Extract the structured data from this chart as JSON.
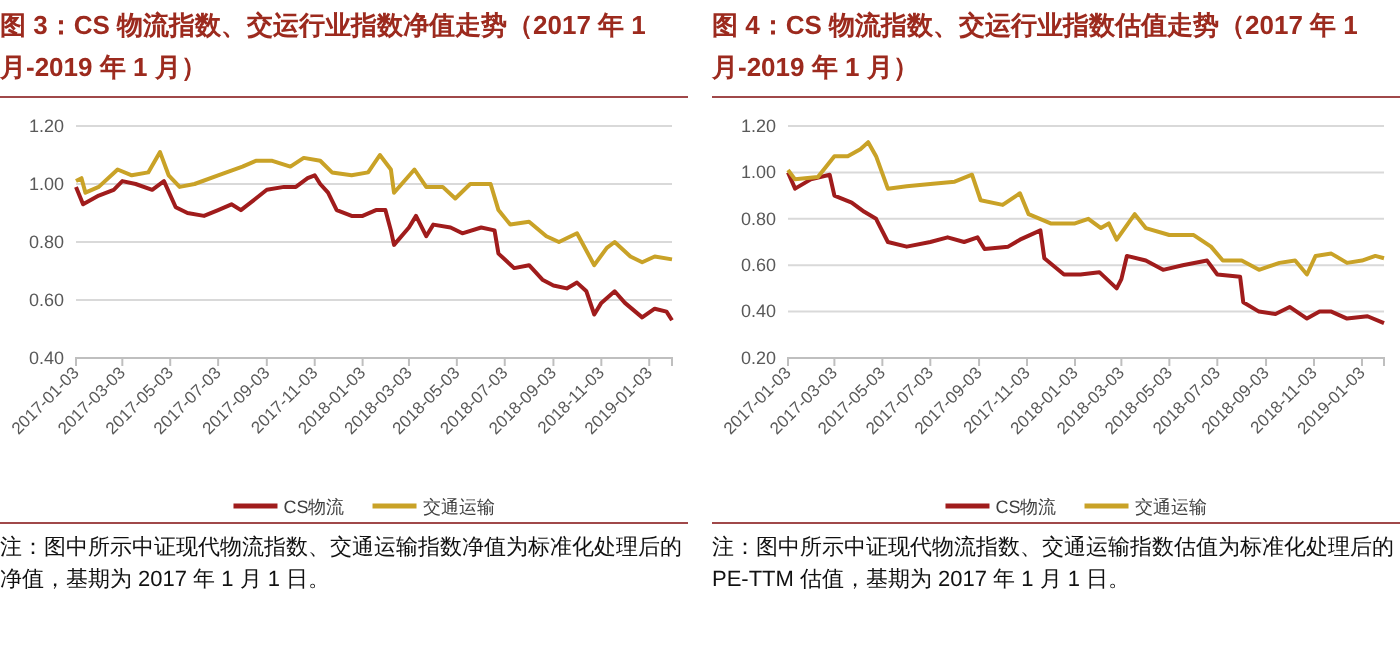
{
  "chart_data": [
    {
      "type": "line",
      "title": "图 3：CS 物流指数、交运行业指数净值走势（2017 年 1 月-2019 年 1 月）",
      "annotations": [
        "注：图中所示中证现代物流指数、交通运输指数净值为标准化处理后的净值，基期为 2017 年 1 月 1 日。"
      ],
      "xlim": [
        "2017-01-03",
        "2019-02-01"
      ],
      "xticks": [
        "2017-01-03",
        "2017-03-03",
        "2017-05-03",
        "2017-07-03",
        "2017-09-03",
        "2017-11-03",
        "2018-01-03",
        "2018-03-03",
        "2018-05-03",
        "2018-07-03",
        "2018-09-03",
        "2018-11-03",
        "2019-01-03"
      ],
      "ylim": [
        0.4,
        1.2
      ],
      "yticks": [
        {
          "value": 0.4,
          "label": "0.40"
        },
        {
          "value": 0.6,
          "label": "0.60"
        },
        {
          "value": 0.8,
          "label": "0.80"
        },
        {
          "value": 1.0,
          "label": "1.00"
        },
        {
          "value": 1.2,
          "label": "1.20"
        }
      ],
      "grid": "y",
      "legend": "bottom",
      "series": [
        {
          "name": "CS物流",
          "color": "#a01c1c",
          "x": [
            "2017-01-03",
            "2017-01-12",
            "2017-02-01",
            "2017-02-20",
            "2017-03-03",
            "2017-03-20",
            "2017-04-10",
            "2017-04-25",
            "2017-05-10",
            "2017-05-25",
            "2017-06-15",
            "2017-07-03",
            "2017-07-20",
            "2017-08-01",
            "2017-08-20",
            "2017-09-03",
            "2017-09-25",
            "2017-10-10",
            "2017-10-25",
            "2017-11-03",
            "2017-11-10",
            "2017-11-20",
            "2017-12-01",
            "2017-12-20",
            "2018-01-03",
            "2018-01-20",
            "2018-02-01",
            "2018-02-08",
            "2018-02-12",
            "2018-03-03",
            "2018-03-12",
            "2018-03-25",
            "2018-04-03",
            "2018-04-25",
            "2018-05-10",
            "2018-06-03",
            "2018-06-20",
            "2018-06-25",
            "2018-07-15",
            "2018-08-03",
            "2018-08-20",
            "2018-09-03",
            "2018-09-20",
            "2018-10-03",
            "2018-10-15",
            "2018-10-25",
            "2018-11-03",
            "2018-11-20",
            "2018-12-03",
            "2018-12-25",
            "2019-01-10",
            "2019-01-25",
            "2019-02-01"
          ],
          "values": [
            0.99,
            0.93,
            0.96,
            0.98,
            1.01,
            1.0,
            0.98,
            1.01,
            0.92,
            0.9,
            0.89,
            0.91,
            0.93,
            0.91,
            0.95,
            0.98,
            0.99,
            0.99,
            1.02,
            1.03,
            1.0,
            0.97,
            0.91,
            0.89,
            0.89,
            0.91,
            0.91,
            0.84,
            0.79,
            0.85,
            0.89,
            0.82,
            0.86,
            0.85,
            0.83,
            0.85,
            0.84,
            0.76,
            0.71,
            0.72,
            0.67,
            0.65,
            0.64,
            0.66,
            0.63,
            0.55,
            0.59,
            0.63,
            0.59,
            0.54,
            0.57,
            0.56,
            0.53
          ]
        },
        {
          "name": "交通运输",
          "color": "#c9a227",
          "x": [
            "2017-01-03",
            "2017-01-10",
            "2017-01-15",
            "2017-02-01",
            "2017-02-25",
            "2017-03-15",
            "2017-04-05",
            "2017-04-20",
            "2017-05-01",
            "2017-05-15",
            "2017-06-03",
            "2017-07-03",
            "2017-08-03",
            "2017-08-20",
            "2017-09-10",
            "2017-10-03",
            "2017-10-20",
            "2017-11-10",
            "2017-11-25",
            "2017-12-20",
            "2018-01-10",
            "2018-01-25",
            "2018-02-08",
            "2018-02-12",
            "2018-03-10",
            "2018-03-25",
            "2018-04-15",
            "2018-05-01",
            "2018-05-20",
            "2018-06-15",
            "2018-06-25",
            "2018-07-10",
            "2018-08-03",
            "2018-08-25",
            "2018-09-10",
            "2018-10-03",
            "2018-10-25",
            "2018-11-10",
            "2018-11-20",
            "2018-12-10",
            "2018-12-25",
            "2019-01-10",
            "2019-02-01"
          ],
          "values": [
            1.01,
            1.02,
            0.97,
            0.99,
            1.05,
            1.03,
            1.04,
            1.11,
            1.03,
            0.99,
            1.0,
            1.03,
            1.06,
            1.08,
            1.08,
            1.06,
            1.09,
            1.08,
            1.04,
            1.03,
            1.04,
            1.1,
            1.05,
            0.97,
            1.05,
            0.99,
            0.99,
            0.95,
            1.0,
            1.0,
            0.91,
            0.86,
            0.87,
            0.82,
            0.8,
            0.83,
            0.72,
            0.78,
            0.8,
            0.75,
            0.73,
            0.75,
            0.74
          ]
        }
      ]
    },
    {
      "type": "line",
      "title": "图 4：CS 物流指数、交运行业指数估值走势（2017 年 1 月-2019 年 1 月）",
      "annotations": [
        "注：图中所示中证现代物流指数、交通运输指数估值为标准化处理后的 PE-TTM 估值，基期为 2017 年 1 月 1 日。"
      ],
      "xlim": [
        "2017-01-03",
        "2019-01-31"
      ],
      "xticks": [
        "2017-01-03",
        "2017-03-03",
        "2017-05-03",
        "2017-07-03",
        "2017-09-03",
        "2017-11-03",
        "2018-01-03",
        "2018-03-03",
        "2018-05-03",
        "2018-07-03",
        "2018-09-03",
        "2018-11-03",
        "2019-01-03"
      ],
      "ylim": [
        0.2,
        1.2
      ],
      "yticks": [
        {
          "value": 0.2,
          "label": "0.20"
        },
        {
          "value": 0.4,
          "label": "0.40"
        },
        {
          "value": 0.6,
          "label": "0.60"
        },
        {
          "value": 0.8,
          "label": "0.80"
        },
        {
          "value": 1.0,
          "label": "1.00"
        },
        {
          "value": 1.2,
          "label": "1.20"
        }
      ],
      "grid": "y",
      "legend": "bottom",
      "series": [
        {
          "name": "CS物流",
          "color": "#a01c1c",
          "x": [
            "2017-01-03",
            "2017-01-12",
            "2017-02-01",
            "2017-02-25",
            "2017-03-03",
            "2017-03-25",
            "2017-04-10",
            "2017-04-25",
            "2017-05-10",
            "2017-06-03",
            "2017-07-03",
            "2017-07-25",
            "2017-08-15",
            "2017-09-01",
            "2017-09-10",
            "2017-10-10",
            "2017-10-25",
            "2017-11-20",
            "2017-11-25",
            "2017-12-20",
            "2018-01-10",
            "2018-02-03",
            "2018-02-25",
            "2018-03-03",
            "2018-03-10",
            "2018-04-03",
            "2018-04-25",
            "2018-05-20",
            "2018-06-20",
            "2018-07-03",
            "2018-08-01",
            "2018-08-05",
            "2018-08-25",
            "2018-09-15",
            "2018-10-03",
            "2018-10-25",
            "2018-11-10",
            "2018-11-25",
            "2018-12-15",
            "2019-01-10",
            "2019-01-31"
          ],
          "values": [
            1.0,
            0.93,
            0.97,
            0.99,
            0.9,
            0.87,
            0.83,
            0.8,
            0.7,
            0.68,
            0.7,
            0.72,
            0.7,
            0.72,
            0.67,
            0.68,
            0.71,
            0.75,
            0.63,
            0.56,
            0.56,
            0.57,
            0.5,
            0.54,
            0.64,
            0.62,
            0.58,
            0.6,
            0.62,
            0.56,
            0.55,
            0.44,
            0.4,
            0.39,
            0.42,
            0.37,
            0.4,
            0.4,
            0.37,
            0.38,
            0.35
          ]
        },
        {
          "name": "交通运输",
          "color": "#c9a227",
          "x": [
            "2017-01-03",
            "2017-01-12",
            "2017-02-10",
            "2017-03-03",
            "2017-03-20",
            "2017-04-05",
            "2017-04-15",
            "2017-04-25",
            "2017-05-10",
            "2017-06-03",
            "2017-07-03",
            "2017-08-03",
            "2017-08-25",
            "2017-09-05",
            "2017-10-03",
            "2017-10-25",
            "2017-11-05",
            "2017-12-03",
            "2018-01-03",
            "2018-01-20",
            "2018-02-05",
            "2018-02-15",
            "2018-02-25",
            "2018-03-20",
            "2018-04-03",
            "2018-05-03",
            "2018-06-03",
            "2018-06-25",
            "2018-07-10",
            "2018-08-03",
            "2018-08-25",
            "2018-09-20",
            "2018-10-10",
            "2018-10-25",
            "2018-11-05",
            "2018-11-25",
            "2018-12-15",
            "2019-01-03",
            "2019-01-20",
            "2019-01-31"
          ],
          "values": [
            1.01,
            0.97,
            0.98,
            1.07,
            1.07,
            1.1,
            1.13,
            1.07,
            0.93,
            0.94,
            0.95,
            0.96,
            0.99,
            0.88,
            0.86,
            0.91,
            0.82,
            0.78,
            0.78,
            0.8,
            0.76,
            0.78,
            0.71,
            0.82,
            0.76,
            0.73,
            0.73,
            0.68,
            0.62,
            0.62,
            0.58,
            0.61,
            0.62,
            0.56,
            0.64,
            0.65,
            0.61,
            0.62,
            0.64,
            0.63
          ]
        }
      ]
    }
  ]
}
